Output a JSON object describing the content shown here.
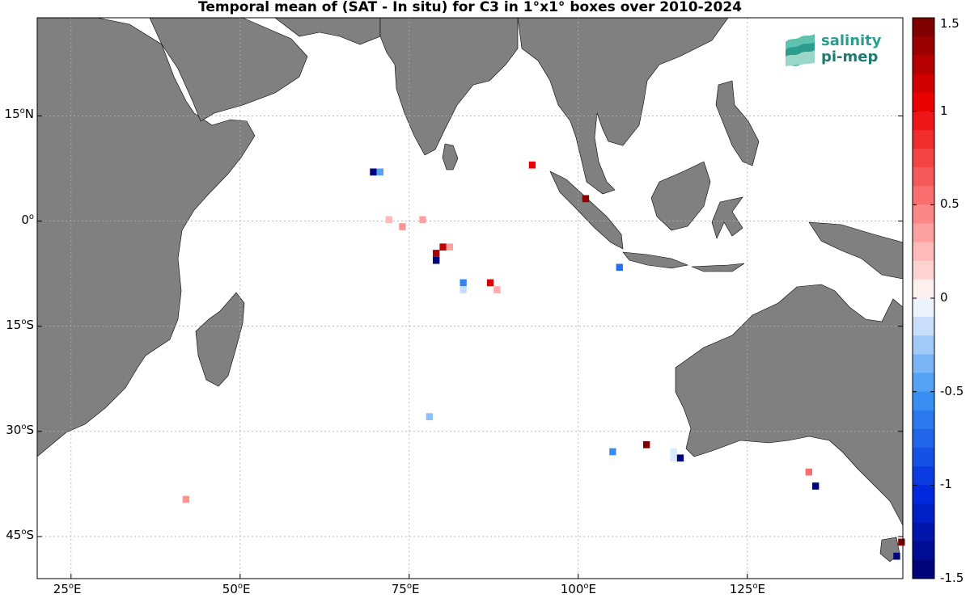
{
  "title": "Temporal mean of (SAT - In situ) for C3 in 1°x1° boxes over 2010-2024",
  "logo": {
    "line1": "salinity",
    "line2": "pi-mep"
  },
  "map": {
    "lon_range": [
      20,
      148
    ],
    "lat_range": [
      -51,
      29
    ],
    "lat_ticks": [
      {
        "value": 15,
        "label": "15",
        "hemi": "N"
      },
      {
        "value": 0,
        "label": "0",
        "hemi": ""
      },
      {
        "value": -15,
        "label": "15",
        "hemi": "S"
      },
      {
        "value": -30,
        "label": "30",
        "hemi": "S"
      },
      {
        "value": -45,
        "label": "45",
        "hemi": "S"
      }
    ],
    "lon_ticks": [
      {
        "value": 25,
        "label": "25",
        "hemi": "E"
      },
      {
        "value": 50,
        "label": "50",
        "hemi": "E"
      },
      {
        "value": 75,
        "label": "75",
        "hemi": "E"
      },
      {
        "value": 100,
        "label": "100",
        "hemi": "E"
      },
      {
        "value": 125,
        "label": "125",
        "hemi": "E"
      }
    ],
    "land_color": "#808080",
    "grid": true
  },
  "colorbar": {
    "range": [
      -1.5,
      1.5
    ],
    "ticks": [
      {
        "value": 1.5,
        "label": "1.5"
      },
      {
        "value": 1,
        "label": "1"
      },
      {
        "value": 0.5,
        "label": "0.5"
      },
      {
        "value": 0,
        "label": "0"
      },
      {
        "value": -0.5,
        "label": "-0.5"
      },
      {
        "value": -1,
        "label": "-1"
      },
      {
        "value": -1.5,
        "label": "-1.5"
      }
    ]
  },
  "chart_data": {
    "type": "heatmap",
    "title": "Temporal mean of (SAT - In situ) for C3 in 1°x1° boxes over 2010-2024",
    "xlim": [
      20,
      148
    ],
    "ylim": [
      -51,
      29
    ],
    "vlim": [
      -1.5,
      1.5
    ],
    "points": [
      {
        "lon": 69.7,
        "lat": 7.0,
        "value": -1.45
      },
      {
        "lon": 70.7,
        "lat": 7.0,
        "value": -0.45
      },
      {
        "lon": 93.2,
        "lat": 8.0,
        "value": 1.05
      },
      {
        "lon": 72.0,
        "lat": 0.2,
        "value": 0.25
      },
      {
        "lon": 74.0,
        "lat": -0.8,
        "value": 0.4
      },
      {
        "lon": 77.0,
        "lat": 0.2,
        "value": 0.35
      },
      {
        "lon": 101.1,
        "lat": 3.2,
        "value": 1.4
      },
      {
        "lon": 80.0,
        "lat": -3.7,
        "value": 1.2
      },
      {
        "lon": 81.0,
        "lat": -3.7,
        "value": 0.35
      },
      {
        "lon": 79.0,
        "lat": -4.6,
        "value": 1.3
      },
      {
        "lon": 79.0,
        "lat": -5.6,
        "value": -1.45
      },
      {
        "lon": 83.0,
        "lat": -8.8,
        "value": -0.6
      },
      {
        "lon": 83.0,
        "lat": -9.8,
        "value": -0.15
      },
      {
        "lon": 87.0,
        "lat": -8.8,
        "value": 1.1
      },
      {
        "lon": 88.0,
        "lat": -9.8,
        "value": 0.3
      },
      {
        "lon": 106.1,
        "lat": -6.6,
        "value": -0.7
      },
      {
        "lon": 78.0,
        "lat": -27.9,
        "value": -0.3
      },
      {
        "lon": 105.1,
        "lat": -32.9,
        "value": -0.55
      },
      {
        "lon": 110.1,
        "lat": -31.9,
        "value": 1.45
      },
      {
        "lon": 114.1,
        "lat": -32.9,
        "value": -0.1
      },
      {
        "lon": 114.1,
        "lat": -33.8,
        "value": -0.1
      },
      {
        "lon": 115.1,
        "lat": -33.8,
        "value": -1.45
      },
      {
        "lon": 134.1,
        "lat": -35.8,
        "value": 0.55
      },
      {
        "lon": 135.1,
        "lat": -37.8,
        "value": -1.45
      },
      {
        "lon": 42.0,
        "lat": -39.7,
        "value": 0.4
      },
      {
        "lon": 147.8,
        "lat": -45.8,
        "value": 1.45
      },
      {
        "lon": 147.1,
        "lat": -47.8,
        "value": -1.45
      }
    ]
  }
}
